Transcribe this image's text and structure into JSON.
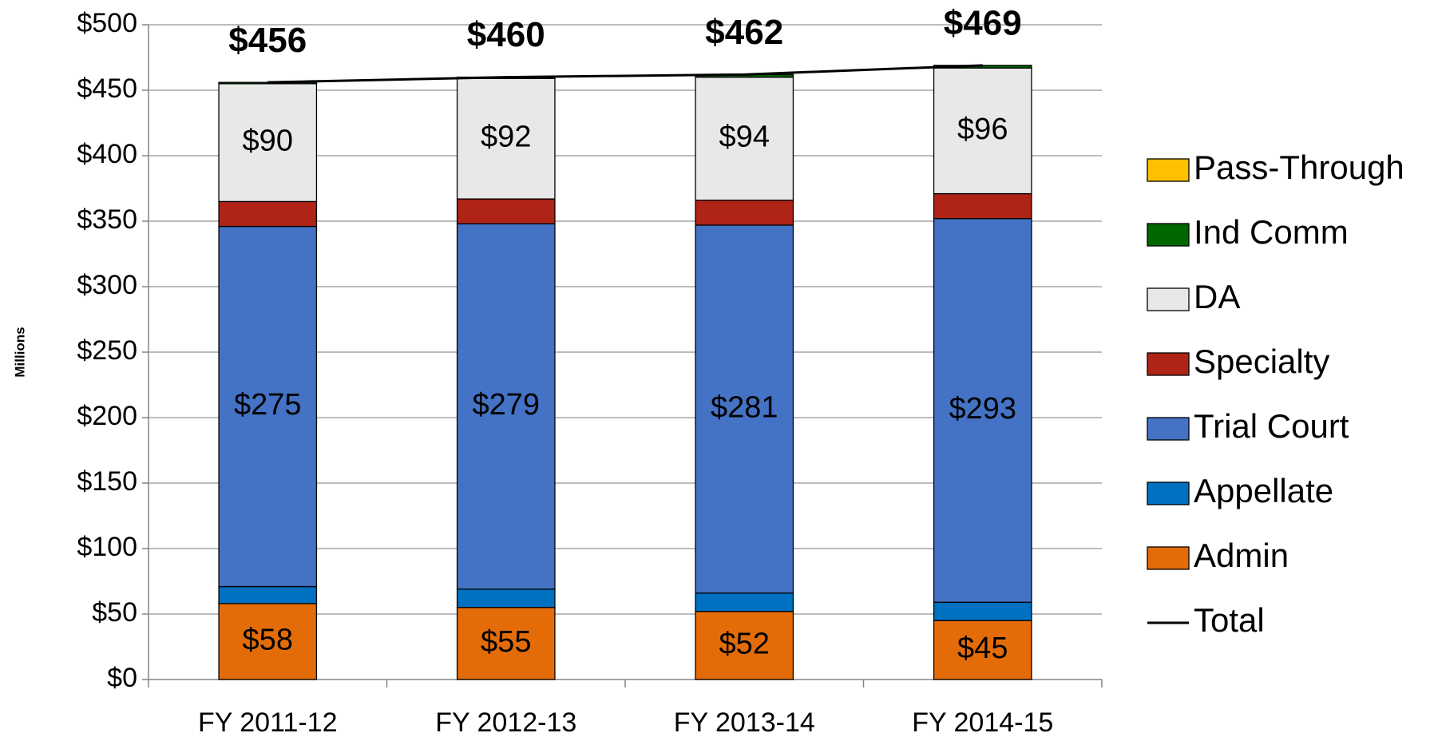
{
  "chart_data": {
    "type": "bar",
    "stacked": true,
    "y_axis_label": "Millions",
    "categories": [
      "FY 2011-12",
      "FY 2012-13",
      "FY 2013-14",
      "FY 2014-15"
    ],
    "series": [
      {
        "name": "Admin",
        "color": "#e36c09",
        "values": [
          58,
          55,
          52,
          45
        ],
        "value_labels": [
          "$58",
          "$55",
          "$52",
          "$45"
        ]
      },
      {
        "name": "Appellate",
        "color": "#0070c0",
        "values": [
          13,
          14,
          14,
          14
        ]
      },
      {
        "name": "Trial Court",
        "color": "#4472c4",
        "values": [
          275,
          279,
          281,
          293
        ],
        "value_labels": [
          "$275",
          "$279",
          "$281",
          "$293"
        ]
      },
      {
        "name": "Specialty",
        "color": "#b02418",
        "values": [
          19,
          19,
          19,
          19
        ]
      },
      {
        "name": "DA",
        "color": "#e8e8e8",
        "values": [
          90,
          92,
          94,
          96
        ],
        "value_labels": [
          "$90",
          "$92",
          "$94",
          "$96"
        ]
      },
      {
        "name": "Ind Comm",
        "color": "#006600",
        "values": [
          1,
          1,
          2,
          2
        ]
      },
      {
        "name": "Pass-Through",
        "color": "#ffc000",
        "values": [
          0,
          0,
          0,
          0
        ]
      },
      {
        "name": "Total",
        "type": "line",
        "color": "#000000",
        "values": [
          456,
          460,
          462,
          469
        ],
        "value_labels": [
          "$456",
          "$460",
          "$462",
          "$469"
        ]
      }
    ],
    "ylim": [
      0,
      500
    ],
    "yticks": [
      {
        "value": 0,
        "label": "$0"
      },
      {
        "value": 50,
        "label": "$50"
      },
      {
        "value": 100,
        "label": "$100"
      },
      {
        "value": 150,
        "label": "$150"
      },
      {
        "value": 200,
        "label": "$200"
      },
      {
        "value": 250,
        "label": "$250"
      },
      {
        "value": 300,
        "label": "$300"
      },
      {
        "value": 350,
        "label": "$350"
      },
      {
        "value": 400,
        "label": "$400"
      },
      {
        "value": 450,
        "label": "$450"
      },
      {
        "value": 500,
        "label": "$500"
      }
    ],
    "grid": true,
    "legend": "right"
  }
}
